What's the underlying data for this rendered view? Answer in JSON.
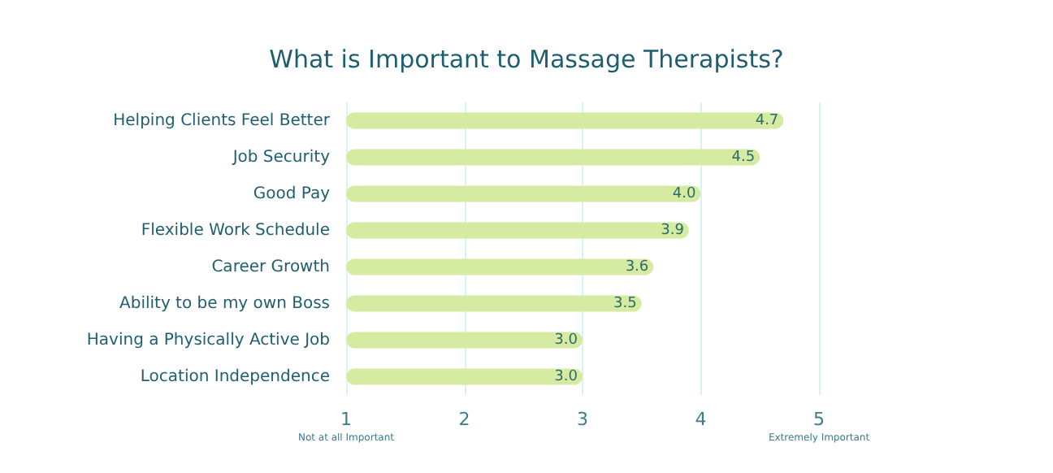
{
  "chart_data": {
    "type": "bar",
    "orientation": "horizontal",
    "title": "What is Important to Massage Therapists?",
    "categories": [
      "Helping Clients Feel Better",
      "Job Security",
      "Good Pay",
      "Flexible Work Schedule",
      "Career Growth",
      "Ability to be my own Boss",
      "Having a Physically Active Job",
      "Location Independence"
    ],
    "values": [
      4.7,
      4.5,
      4.0,
      3.9,
      3.6,
      3.5,
      3.0,
      3.0
    ],
    "value_labels": [
      "4.7",
      "4.5",
      "4.0",
      "3.9",
      "3.6",
      "3.5",
      "3.0",
      "3.0"
    ],
    "color": "#d5eba1",
    "xlim": [
      1,
      5
    ],
    "xticks": [
      {
        "value": 1,
        "label": "1\nNot at all Important"
      },
      2,
      3,
      4,
      {
        "value": 5,
        "label": "5\nExtremely Important"
      }
    ],
    "grid": "x"
  }
}
